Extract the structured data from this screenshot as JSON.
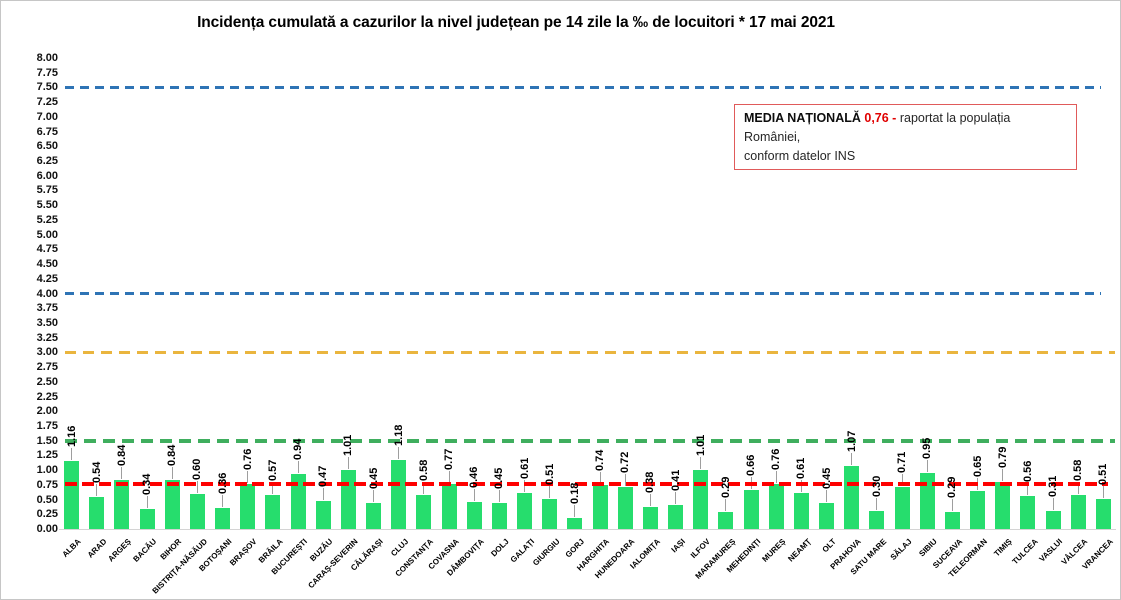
{
  "chart_data": {
    "type": "bar",
    "title": "Incidența cumulată a cazurilor la nivel județean pe 14 zile la ‰ de locuitori *  17 mai 2021",
    "xlabel": "",
    "ylabel": "",
    "ylim": [
      0,
      8
    ],
    "ytick_step": 0.25,
    "grid": false,
    "legend_position": "none",
    "bar_color": "#26dd6d",
    "categories": [
      "ALBA",
      "ARAD",
      "ARGEȘ",
      "BACĂU",
      "BIHOR",
      "BISTRIȚA-NĂSĂUD",
      "BOTOȘANI",
      "BRAȘOV",
      "BRĂILA",
      "BUCUREȘTI",
      "BUZĂU",
      "CARAȘ-SEVERIN",
      "CĂLĂRAȘI",
      "CLUJ",
      "CONSTANȚA",
      "COVASNA",
      "DÂMBOVIȚA",
      "DOLJ",
      "GALAȚI",
      "GIURGIU",
      "GORJ",
      "HARGHITA",
      "HUNEDOARA",
      "IALOMIȚA",
      "IAȘI",
      "ILFOV",
      "MARAMUREȘ",
      "MEHEDINȚI",
      "MUREȘ",
      "NEAMȚ",
      "OLT",
      "PRAHOVA",
      "SATU MARE",
      "SĂLAJ",
      "SIBIU",
      "SUCEAVA",
      "TELEORMAN",
      "TIMIȘ",
      "TULCEA",
      "VASLUI",
      "VÂLCEA",
      "VRANCEA"
    ],
    "values": [
      1.16,
      0.54,
      0.84,
      0.34,
      0.84,
      0.6,
      0.36,
      0.76,
      0.57,
      0.94,
      0.47,
      1.01,
      0.45,
      1.18,
      0.58,
      0.77,
      0.46,
      0.45,
      0.61,
      0.51,
      0.18,
      0.74,
      0.72,
      0.38,
      0.41,
      1.01,
      0.29,
      0.66,
      0.76,
      0.61,
      0.45,
      1.07,
      0.3,
      0.71,
      0.95,
      0.29,
      0.65,
      0.79,
      0.56,
      0.31,
      0.58,
      0.51
    ],
    "value_labels": [
      "1.16",
      "0.54",
      "0.84",
      "0.34",
      "0.84",
      "0.60",
      "0.36",
      "0.76",
      "0.57",
      "0.94",
      "0.47",
      "1.01",
      "0.45",
      "1.18",
      "0.58",
      "0.77",
      "0.46",
      "0.45",
      "0.61",
      "0.51",
      "0.18",
      "0.74",
      "0.72",
      "0.38",
      "0.41",
      "1.01",
      "0.29",
      "0.66",
      "0.76",
      "0.61",
      "0.45",
      "1.07",
      "0.30",
      "0.71",
      "0.95",
      "0.29",
      "0.65",
      "0.79",
      "0.56",
      "0.31",
      "0.58",
      "0.51"
    ],
    "reference_lines": [
      {
        "name": "threshold-7-50",
        "value": 7.5,
        "color": "#2e74b5",
        "thickness": 3,
        "dash": 9,
        "gap": 6,
        "x_end": 1100
      },
      {
        "name": "threshold-4-00",
        "value": 4.0,
        "color": "#2e74b5",
        "thickness": 3,
        "dash": 9,
        "gap": 6,
        "x_end": 1100
      },
      {
        "name": "threshold-3-00",
        "value": 3.0,
        "color": "#eab53e",
        "thickness": 3,
        "dash": 11,
        "gap": 7,
        "x_end": 1114
      },
      {
        "name": "threshold-1-50",
        "value": 1.5,
        "color": "#3fae5e",
        "thickness": 4,
        "dash": 12,
        "gap": 7,
        "x_end": 1114
      },
      {
        "name": "national-average",
        "value": 0.76,
        "color": "#fe0000",
        "thickness": 4,
        "dash": 12,
        "gap": 5,
        "x_end": 1107
      }
    ]
  },
  "annotation": {
    "label": "MEDIA NAȚIONALĂ",
    "value": "0,76 -",
    "line1_rest": "raportat la populația României,",
    "line2": "conform datelor INS"
  }
}
